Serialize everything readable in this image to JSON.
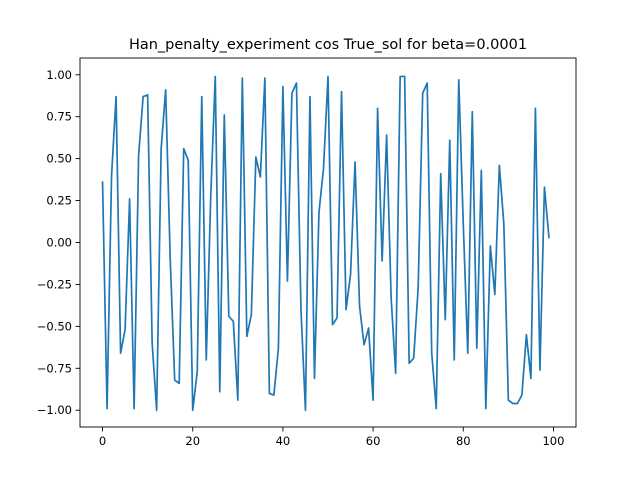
{
  "chart_data": {
    "type": "line",
    "title": "Han_penalty_experiment cos True_sol for beta=0.0001",
    "xlabel": "",
    "ylabel": "",
    "xlim": [
      -5,
      105
    ],
    "ylim": [
      -1.1,
      1.1
    ],
    "grid": false,
    "xticks": [
      0,
      20,
      40,
      60,
      80,
      100
    ],
    "xtick_labels": [
      "0",
      "20",
      "40",
      "60",
      "80",
      "100"
    ],
    "yticks": [
      1.0,
      0.75,
      0.5,
      0.25,
      0.0,
      -0.25,
      -0.5,
      -0.75,
      -1.0
    ],
    "ytick_labels": [
      "1.00",
      "0.75",
      "0.50",
      "0.25",
      "0.00",
      "−0.25",
      "−0.50",
      "−0.75",
      "−1.00"
    ],
    "series": [
      {
        "name": "",
        "color": "#1f77b4",
        "x": [
          0,
          1,
          2,
          3,
          4,
          5,
          6,
          7,
          8,
          9,
          10,
          11,
          12,
          13,
          14,
          15,
          16,
          17,
          18,
          19,
          20,
          21,
          22,
          23,
          24,
          25,
          26,
          27,
          28,
          29,
          30,
          31,
          32,
          33,
          34,
          35,
          36,
          37,
          38,
          39,
          40,
          41,
          42,
          43,
          44,
          45,
          46,
          47,
          48,
          49,
          50,
          51,
          52,
          53,
          54,
          55,
          56,
          57,
          58,
          59,
          60,
          61,
          62,
          63,
          64,
          65,
          66,
          67,
          68,
          69,
          70,
          71,
          72,
          73,
          74,
          75,
          76,
          77,
          78,
          79,
          80,
          81,
          82,
          83,
          84,
          85,
          86,
          87,
          88,
          89,
          90,
          91,
          92,
          93,
          94,
          95,
          96,
          97,
          98,
          99
        ],
        "y": [
          0.36,
          -0.99,
          0.4,
          0.87,
          -0.66,
          -0.52,
          0.26,
          -0.99,
          0.52,
          0.87,
          0.88,
          -0.6,
          -1.0,
          0.56,
          0.91,
          -0.09,
          -0.82,
          -0.84,
          0.56,
          0.49,
          -1.0,
          -0.77,
          0.87,
          -0.7,
          0.28,
          0.99,
          -0.89,
          0.76,
          -0.44,
          -0.47,
          -0.94,
          0.98,
          -0.56,
          -0.43,
          0.51,
          0.39,
          0.98,
          -0.9,
          -0.91,
          -0.63,
          0.93,
          -0.23,
          0.89,
          0.95,
          -0.4,
          -1.0,
          0.87,
          -0.81,
          0.18,
          0.44,
          0.99,
          -0.49,
          -0.45,
          0.9,
          -0.4,
          -0.19,
          0.48,
          -0.38,
          -0.61,
          -0.51,
          -0.94,
          0.8,
          -0.11,
          0.64,
          -0.33,
          -0.78,
          0.99,
          0.99,
          -0.72,
          -0.69,
          -0.27,
          0.89,
          0.95,
          -0.66,
          -0.99,
          0.41,
          -0.46,
          0.61,
          -0.7,
          0.97,
          0.11,
          -0.66,
          0.78,
          -0.63,
          0.43,
          -0.99,
          -0.02,
          -0.31,
          0.46,
          0.11,
          -0.94,
          -0.96,
          -0.96,
          -0.91,
          -0.55,
          -0.81,
          0.8,
          -0.76,
          0.33,
          0.03
        ]
      }
    ]
  }
}
